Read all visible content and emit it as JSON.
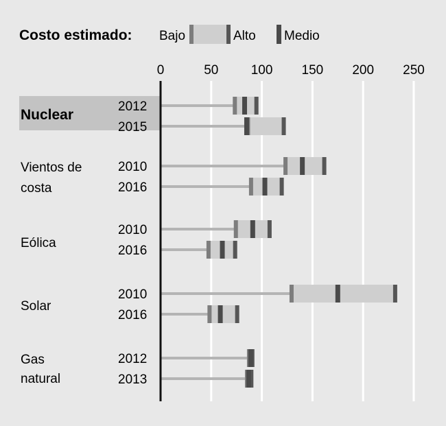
{
  "chart_data": {
    "type": "bar",
    "title": "Costo estimado:",
    "legend": {
      "items": [
        {
          "label": "Bajo",
          "kind": "low"
        },
        {
          "label": "Alto",
          "kind": "high"
        },
        {
          "label": "Medio",
          "kind": "mid"
        }
      ],
      "placement": "top"
    },
    "x_axis": {
      "ticks": [
        0,
        50,
        100,
        150,
        200,
        250
      ],
      "range": [
        0,
        260
      ],
      "grid": true
    },
    "categories": [
      {
        "label_lines": [
          "Nuclear"
        ],
        "highlight": true,
        "rows": [
          {
            "year": "2012",
            "low": 72,
            "mid": 83,
            "high": 96
          },
          {
            "year": "2015",
            "low": 85,
            "mid": 85,
            "high": 123
          }
        ]
      },
      {
        "label_lines": [
          "Vientos de",
          "costa"
        ],
        "highlight": false,
        "rows": [
          {
            "year": "2010",
            "low": 122,
            "mid": 140,
            "high": 163
          },
          {
            "year": "2016",
            "low": 88,
            "mid": 103,
            "high": 121
          }
        ]
      },
      {
        "label_lines": [
          "Eólica"
        ],
        "highlight": false,
        "rows": [
          {
            "year": "2010",
            "low": 73,
            "mid": 91,
            "high": 109
          },
          {
            "year": "2016",
            "low": 46,
            "mid": 61,
            "high": 75
          }
        ]
      },
      {
        "label_lines": [
          "Solar"
        ],
        "highlight": false,
        "rows": [
          {
            "year": "2010",
            "low": 128,
            "mid": 175,
            "high": 233
          },
          {
            "year": "2016",
            "low": 47,
            "mid": 59,
            "high": 77
          }
        ]
      },
      {
        "label_lines": [
          "Gas",
          "natural"
        ],
        "highlight": false,
        "rows": [
          {
            "year": "2012",
            "low": 86,
            "mid": 89,
            "high": 92
          },
          {
            "year": "2013",
            "low": 84,
            "mid": 87,
            "high": 91
          }
        ]
      }
    ],
    "colors": {
      "background": "#e8e8e8",
      "range_bar": "#cfcfcf",
      "stem": "#b4b4b4",
      "low_marker": "#7d7d7d",
      "high_marker": "#565656",
      "mid_marker": "#4a4a4a",
      "gridline": "#ffffff",
      "axis": "#111111",
      "highlight_band": "#c3c3c3"
    }
  }
}
